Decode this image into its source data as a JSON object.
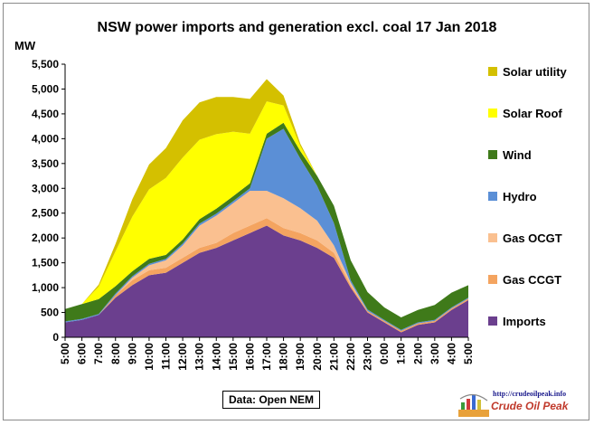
{
  "chart_data": {
    "type": "area",
    "stacked": true,
    "title": "NSW power imports and generation excl. coal 17 Jan 2018",
    "ylabel": "MW",
    "ylim": [
      0,
      5500
    ],
    "yticks": [
      0,
      500,
      1000,
      1500,
      2000,
      2500,
      3000,
      3500,
      4000,
      4500,
      5000,
      5500
    ],
    "ytick_labels": [
      "0",
      "500",
      "1,000",
      "1,500",
      "2,000",
      "2,500",
      "3,000",
      "3,500",
      "4,000",
      "4,500",
      "5,000",
      "5,500"
    ],
    "x_hours": [
      5,
      6,
      7,
      8,
      9,
      10,
      11,
      12,
      13,
      14,
      15,
      16,
      17,
      18,
      19,
      20,
      21,
      22,
      23,
      24,
      25,
      26,
      27,
      28,
      29
    ],
    "x_tick_labels": [
      "5:00",
      "6:00",
      "7:00",
      "8:00",
      "9:00",
      "10:00",
      "11:00",
      "12:00",
      "13:00",
      "14:00",
      "15:00",
      "16:00",
      "17:00",
      "18:00",
      "19:00",
      "20:00",
      "21:00",
      "22:00",
      "23:00",
      "0:00",
      "1:00",
      "2:00",
      "3:00",
      "4:00",
      "5:00"
    ],
    "legend_position": "right",
    "grid": false,
    "series": [
      {
        "name": "Imports",
        "color": "#6b3f8e",
        "values": [
          300,
          350,
          450,
          800,
          1050,
          1250,
          1300,
          1500,
          1700,
          1800,
          1950,
          2100,
          2250,
          2050,
          1950,
          1800,
          1600,
          1000,
          500,
          300,
          100,
          250,
          300,
          550,
          750
        ]
      },
      {
        "name": "Gas CCGT",
        "color": "#f4a460",
        "values": [
          0,
          0,
          0,
          50,
          100,
          100,
          100,
          100,
          100,
          100,
          150,
          150,
          150,
          150,
          150,
          150,
          100,
          50,
          30,
          30,
          30,
          30,
          30,
          30,
          30
        ]
      },
      {
        "name": "Gas OCGT",
        "color": "#fac090",
        "values": [
          0,
          0,
          0,
          0,
          50,
          100,
          150,
          250,
          450,
          550,
          600,
          700,
          550,
          600,
          500,
          400,
          150,
          50,
          0,
          0,
          0,
          0,
          0,
          0,
          0
        ]
      },
      {
        "name": "Hydro",
        "color": "#5b8fd6",
        "values": [
          20,
          20,
          20,
          30,
          30,
          30,
          30,
          40,
          40,
          40,
          40,
          50,
          1050,
          1400,
          1000,
          700,
          450,
          50,
          30,
          20,
          20,
          20,
          20,
          20,
          20
        ]
      },
      {
        "name": "Wind",
        "color": "#3f7a1a",
        "values": [
          250,
          300,
          300,
          150,
          100,
          100,
          80,
          80,
          90,
          100,
          100,
          100,
          100,
          120,
          150,
          200,
          350,
          400,
          350,
          250,
          250,
          250,
          300,
          300,
          250
        ]
      },
      {
        "name": "Solar Roof",
        "color": "#ffff00",
        "values": [
          0,
          0,
          250,
          700,
          1100,
          1400,
          1550,
          1650,
          1600,
          1500,
          1300,
          1000,
          650,
          350,
          100,
          0,
          0,
          0,
          0,
          0,
          0,
          0,
          0,
          0,
          0
        ]
      },
      {
        "name": "Solar utility",
        "color": "#d4c000",
        "values": [
          0,
          0,
          40,
          150,
          350,
          500,
          600,
          750,
          750,
          750,
          700,
          700,
          450,
          200,
          50,
          0,
          0,
          0,
          0,
          0,
          0,
          0,
          0,
          0,
          0
        ]
      }
    ]
  },
  "source_note": "Data: Open NEM",
  "logo": {
    "url": "http://crudeoilpeak.info",
    "name": "Crude Oil Peak"
  }
}
